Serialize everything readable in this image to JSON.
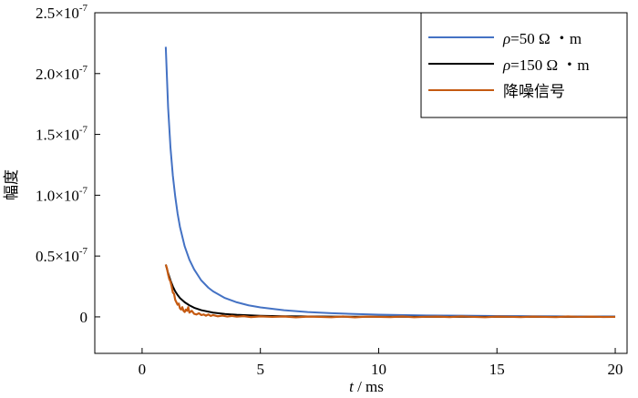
{
  "chart_data": {
    "type": "line",
    "xlabel_var": "t",
    "xlabel_unit": " / ms",
    "ylabel": "幅度",
    "xlim": [
      -2,
      20.5
    ],
    "ylim": [
      -3e-08,
      2.5e-07
    ],
    "xticks": [
      0,
      5,
      10,
      15,
      20
    ],
    "xtick_labels": [
      "0",
      "5",
      "10",
      "15",
      "20"
    ],
    "yticks": [
      0,
      5e-08,
      1e-07,
      1.5e-07,
      2e-07,
      2.5e-07
    ],
    "ytick_mantissas": [
      "0",
      "0.5×10",
      "1.0×10",
      "1.5×10",
      "2.0×10",
      "2.5×10"
    ],
    "ytick_exponent": "-7",
    "grid": false,
    "legend_position": "top-right",
    "series": [
      {
        "name_symbol": "ρ",
        "name_rest": "=50  Ω ・m",
        "color": "#4472c4",
        "x": [
          1.0,
          1.1,
          1.2,
          1.3,
          1.4,
          1.5,
          1.6,
          1.8,
          2.0,
          2.2,
          2.5,
          2.8,
          3.0,
          3.5,
          4.0,
          4.5,
          5.0,
          6.0,
          7.0,
          8.0,
          10.0,
          12.0,
          15.0,
          17.5,
          20.0
        ],
        "y": [
          2.22e-07,
          1.72e-07,
          1.39e-07,
          1.16e-07,
          9.9e-08,
          8.5e-08,
          7.4e-08,
          5.8e-08,
          4.7e-08,
          3.9e-08,
          3e-08,
          2.4e-08,
          2.1e-08,
          1.55e-08,
          1.2e-08,
          9.5e-09,
          7.8e-09,
          5.5e-09,
          4e-09,
          3e-09,
          1.8e-09,
          1.2e-09,
          7e-10,
          4e-10,
          3e-10
        ]
      },
      {
        "name_symbol": "ρ",
        "name_rest": "=150  Ω ・m",
        "color": "#000000",
        "x": [
          1.0,
          1.1,
          1.2,
          1.3,
          1.4,
          1.5,
          1.6,
          1.8,
          2.0,
          2.2,
          2.5,
          3.0,
          3.5,
          4.0,
          5.0,
          6.0,
          8.0,
          10.0,
          12.0,
          15.0,
          17.5,
          20.0
        ],
        "y": [
          4.3e-08,
          3.6e-08,
          3e-08,
          2.5e-08,
          2.1e-08,
          1.8e-08,
          1.55e-08,
          1.2e-08,
          9.5e-09,
          7.5e-09,
          5.5e-09,
          3.5e-09,
          2.4e-09,
          1.7e-09,
          9e-10,
          5e-10,
          2e-10,
          1e-10,
          5e-11,
          2e-11,
          1e-11,
          0.0
        ]
      },
      {
        "name": "降噪信号",
        "color": "#c55a11",
        "x": [
          1.0,
          1.05,
          1.1,
          1.15,
          1.2,
          1.25,
          1.3,
          1.35,
          1.4,
          1.45,
          1.5,
          1.55,
          1.6,
          1.65,
          1.7,
          1.75,
          1.8,
          1.85,
          1.9,
          1.95,
          2.0,
          2.1,
          2.2,
          2.3,
          2.4,
          2.5,
          2.6,
          2.7,
          2.8,
          2.9,
          3.0,
          3.2,
          3.4,
          3.6,
          3.8,
          4.0,
          4.3,
          4.6,
          5.0,
          5.5,
          6.0,
          6.5,
          7.0,
          7.5,
          8.0,
          8.5,
          9.0,
          9.5,
          10.0,
          10.5,
          11.0,
          11.5,
          12.0,
          12.5,
          13.0,
          13.5,
          14.0,
          14.5,
          15.0,
          15.5,
          16.0,
          16.5,
          17.0,
          17.5,
          18.0,
          18.5,
          19.0,
          19.5,
          20.0
        ],
        "y": [
          4.3e-08,
          4e-08,
          3.5e-08,
          3.1e-08,
          2.9e-08,
          2.5e-08,
          2e-08,
          1.9e-08,
          1.4e-08,
          1.2e-08,
          1e-08,
          1.1e-08,
          7e-09,
          6e-09,
          8e-09,
          5e-09,
          4e-09,
          6e-09,
          5e-09,
          8e-09,
          3.5e-09,
          5e-09,
          2.5e-09,
          2e-09,
          3e-09,
          1.5e-09,
          2e-09,
          1e-09,
          2e-09,
          8e-10,
          1.5e-09,
          5e-10,
          1e-09,
          3e-10,
          8e-10,
          2e-10,
          6e-10,
          -2e-10,
          4e-10,
          0.0,
          3e-10,
          -4e-10,
          2e-10,
          0.0,
          -3e-10,
          3e-10,
          -4e-10,
          2e-10,
          0.0,
          -2e-10,
          3e-10,
          -3e-10,
          1e-10,
          2e-10,
          -2e-10,
          4e-10,
          0.0,
          -3e-10,
          2e-10,
          1e-10,
          -2e-10,
          2e-10,
          0.0,
          -2e-10,
          3e-10,
          0.0,
          2e-10,
          -1e-10,
          0.0
        ]
      }
    ]
  }
}
